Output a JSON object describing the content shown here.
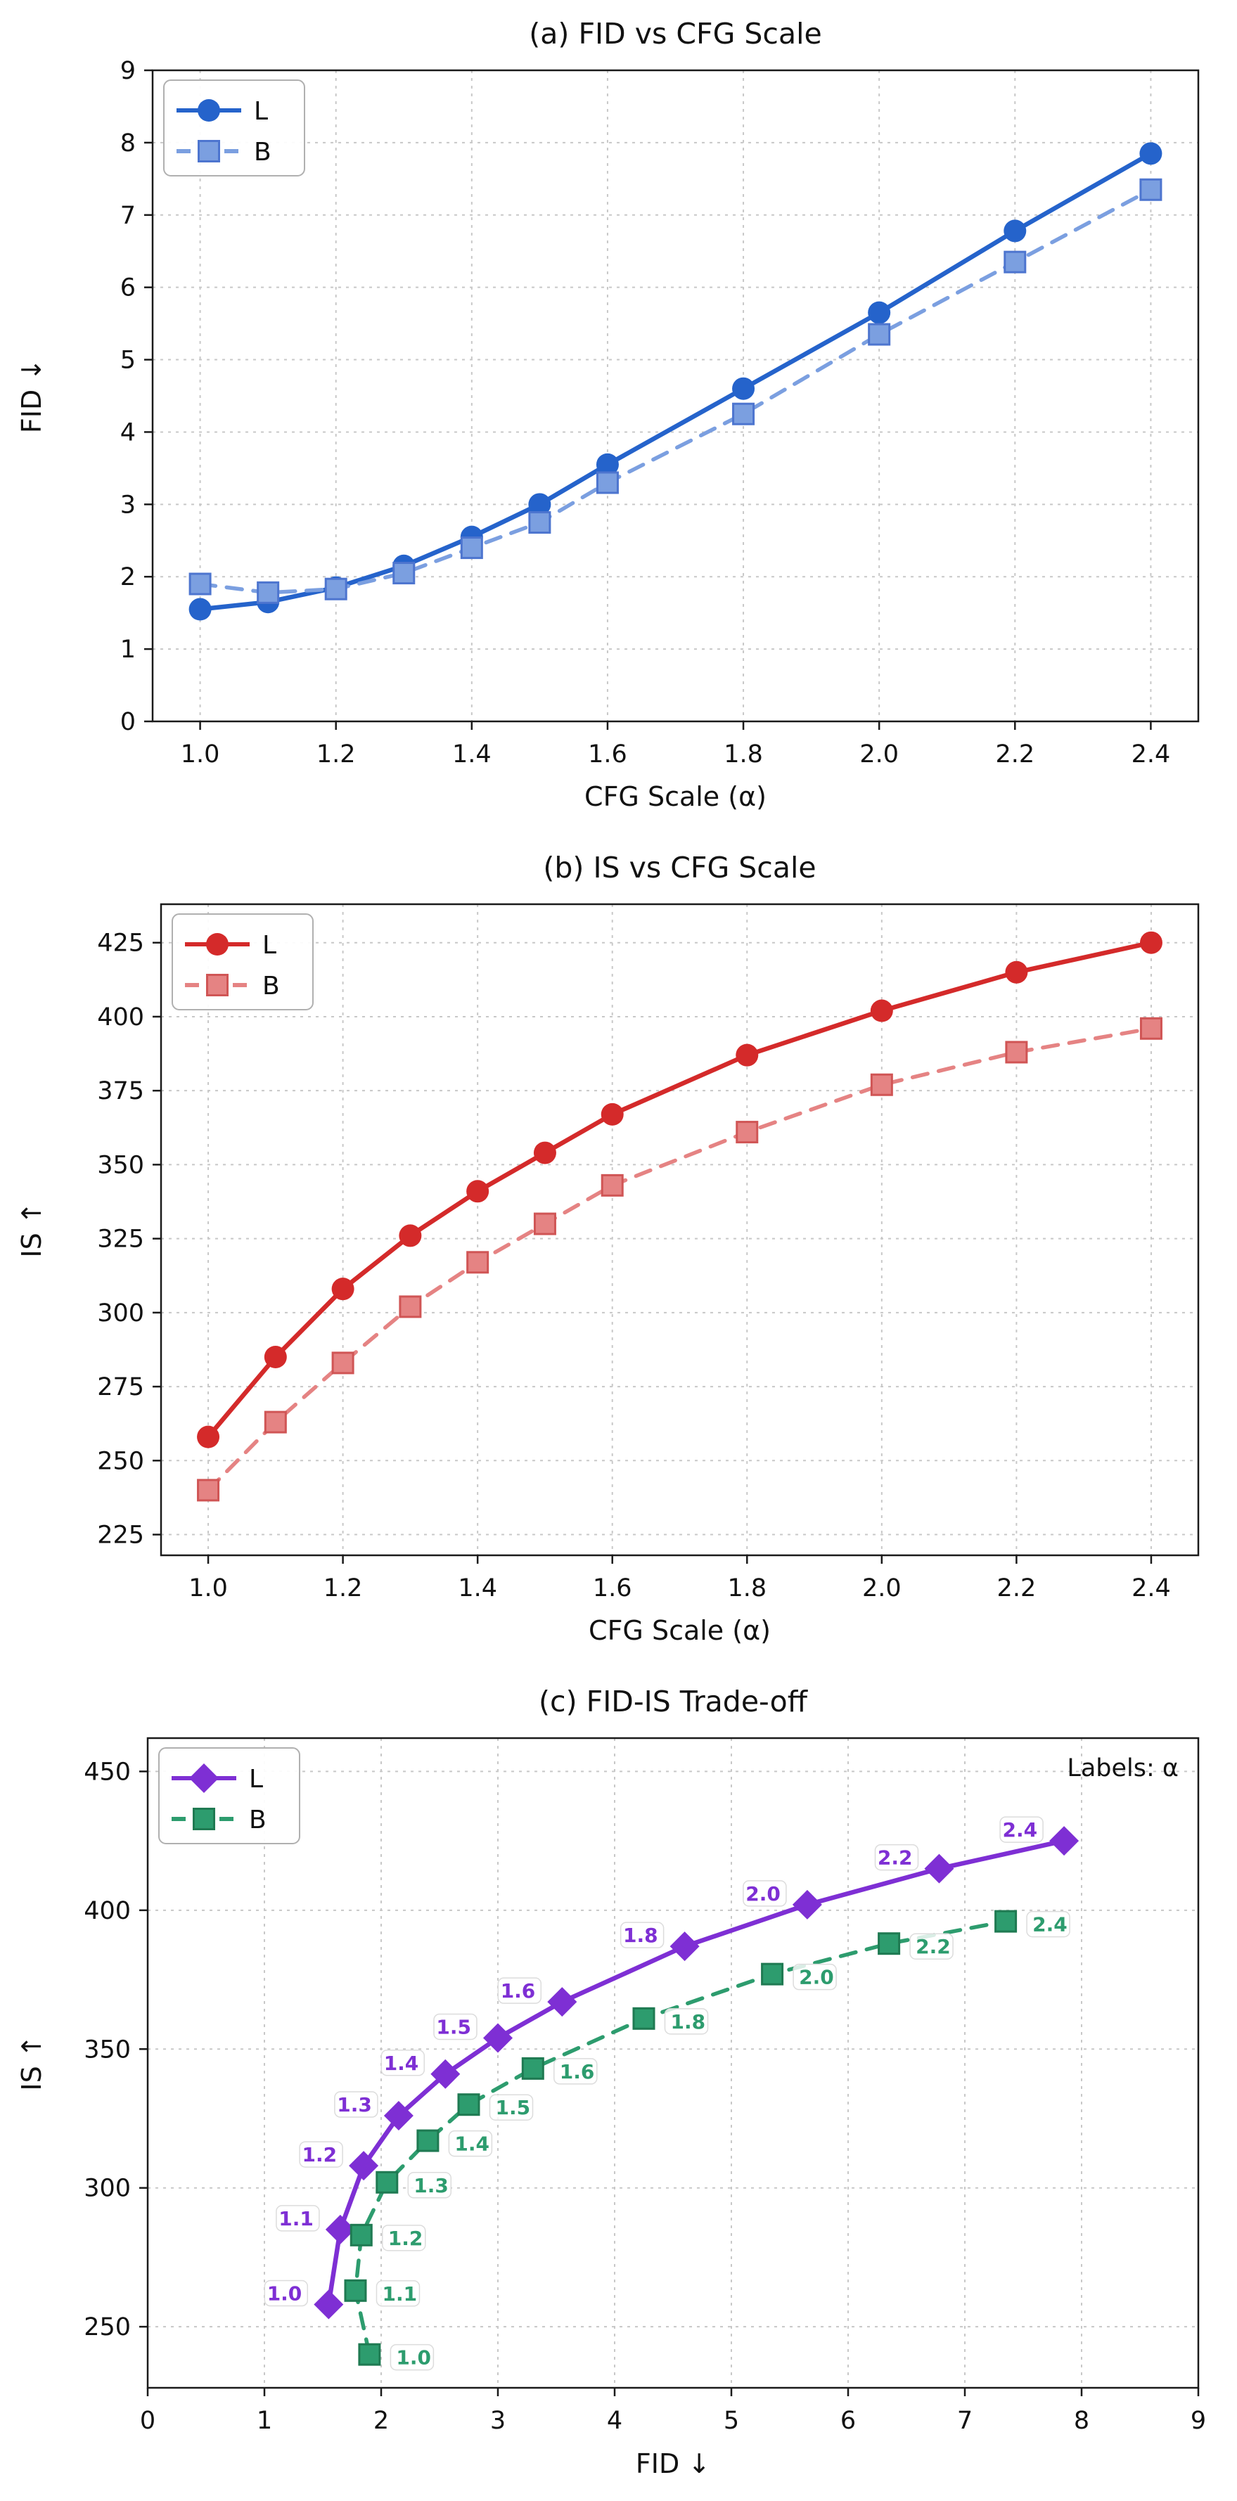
{
  "figure": {
    "description": "Three stacked matplotlib-style charts comparing models L and B across CFG scales"
  },
  "chart_data": [
    {
      "id": "fid-vs-cfg",
      "type": "line",
      "title": "(a) FID vs CFG Scale",
      "xlabel": "CFG Scale (α)",
      "ylabel": "FID ↓",
      "xlim": [
        0.93,
        2.47
      ],
      "ylim": [
        0,
        9
      ],
      "xticks": [
        1.0,
        1.2,
        1.4,
        1.6,
        1.8,
        2.0,
        2.2,
        2.4
      ],
      "xtick_labels": [
        "1.0",
        "1.2",
        "1.4",
        "1.6",
        "1.8",
        "2.0",
        "2.2",
        "2.4"
      ],
      "yticks": [
        0,
        1,
        2,
        3,
        4,
        5,
        6,
        7,
        8,
        9
      ],
      "ytick_labels": [
        "0",
        "1",
        "2",
        "3",
        "4",
        "5",
        "6",
        "7",
        "8",
        "9"
      ],
      "x": [
        1.0,
        1.1,
        1.2,
        1.3,
        1.4,
        1.5,
        1.6,
        1.8,
        2.0,
        2.2,
        2.4
      ],
      "legend_position": "top-left",
      "grid": true,
      "series": [
        {
          "name": "L",
          "color": "#2563cb",
          "dash": "solid",
          "marker": "circle",
          "values": [
            1.55,
            1.65,
            1.85,
            2.15,
            2.55,
            3.0,
            3.55,
            4.6,
            5.65,
            6.78,
            7.85
          ]
        },
        {
          "name": "B",
          "color": "#7b9fe0",
          "dash": "dashed",
          "marker": "square",
          "marker_edge": "#4d75cf",
          "values": [
            1.9,
            1.78,
            1.83,
            2.05,
            2.4,
            2.75,
            3.3,
            4.25,
            5.35,
            6.35,
            7.35
          ]
        }
      ]
    },
    {
      "id": "is-vs-cfg",
      "type": "line",
      "title": "(b) IS vs CFG Scale",
      "xlabel": "CFG Scale (α)",
      "ylabel": "IS ↑",
      "xlim": [
        0.93,
        2.47
      ],
      "ylim": [
        218,
        438
      ],
      "xticks": [
        1.0,
        1.2,
        1.4,
        1.6,
        1.8,
        2.0,
        2.2,
        2.4
      ],
      "xtick_labels": [
        "1.0",
        "1.2",
        "1.4",
        "1.6",
        "1.8",
        "2.0",
        "2.2",
        "2.4"
      ],
      "yticks": [
        225,
        250,
        275,
        300,
        325,
        350,
        375,
        400,
        425
      ],
      "ytick_labels": [
        "225",
        "250",
        "275",
        "300",
        "325",
        "350",
        "375",
        "400",
        "425"
      ],
      "x": [
        1.0,
        1.1,
        1.2,
        1.3,
        1.4,
        1.5,
        1.6,
        1.8,
        2.0,
        2.2,
        2.4
      ],
      "legend_position": "top-left",
      "grid": true,
      "series": [
        {
          "name": "L",
          "color": "#d42a2a",
          "dash": "solid",
          "marker": "circle",
          "values": [
            258,
            285,
            308,
            326,
            341,
            354,
            367,
            387,
            402,
            415,
            425
          ]
        },
        {
          "name": "B",
          "color": "#e58383",
          "dash": "dashed",
          "marker": "square",
          "marker_edge": "#d05555",
          "values": [
            240,
            263,
            283,
            302,
            317,
            330,
            343,
            361,
            377,
            388,
            396
          ]
        }
      ]
    },
    {
      "id": "fid-is-tradeoff",
      "type": "scatter-line",
      "title": "(c) FID-IS Trade-off",
      "xlabel": "FID  ↓",
      "ylabel": "IS ↑",
      "annotation": "Labels: α",
      "xlim": [
        0,
        9
      ],
      "ylim": [
        228,
        462
      ],
      "xticks": [
        0,
        1,
        2,
        3,
        4,
        5,
        6,
        7,
        8,
        9
      ],
      "xtick_labels": [
        "0",
        "1",
        "2",
        "3",
        "4",
        "5",
        "6",
        "7",
        "8",
        "9"
      ],
      "yticks": [
        250,
        300,
        350,
        400,
        450
      ],
      "ytick_labels": [
        "250",
        "300",
        "350",
        "400",
        "450"
      ],
      "legend_position": "top-left",
      "grid": true,
      "series": [
        {
          "name": "L",
          "color": "#7e2fd4",
          "dash": "solid",
          "marker": "diamond",
          "label_side": "left",
          "x": [
            1.55,
            1.65,
            1.85,
            2.15,
            2.55,
            3.0,
            3.55,
            4.6,
            5.65,
            6.78,
            7.85
          ],
          "y": [
            258,
            285,
            308,
            326,
            341,
            354,
            367,
            387,
            402,
            415,
            425
          ],
          "point_labels": [
            "1.0",
            "1.1",
            "1.2",
            "1.3",
            "1.4",
            "1.5",
            "1.6",
            "1.8",
            "2.0",
            "2.2",
            "2.4"
          ]
        },
        {
          "name": "B",
          "color": "#2d9c6e",
          "dash": "dashed",
          "marker": "square",
          "marker_edge": "#1f7a52",
          "label_side": "right",
          "x": [
            1.9,
            1.78,
            1.83,
            2.05,
            2.4,
            2.75,
            3.3,
            4.25,
            5.35,
            6.35,
            7.35
          ],
          "y": [
            240,
            263,
            283,
            302,
            317,
            330,
            343,
            361,
            377,
            388,
            396
          ],
          "point_labels": [
            "1.0",
            "1.1",
            "1.2",
            "1.3",
            "1.4",
            "1.5",
            "1.6",
            "1.8",
            "2.0",
            "2.2",
            "2.4"
          ]
        }
      ]
    }
  ]
}
